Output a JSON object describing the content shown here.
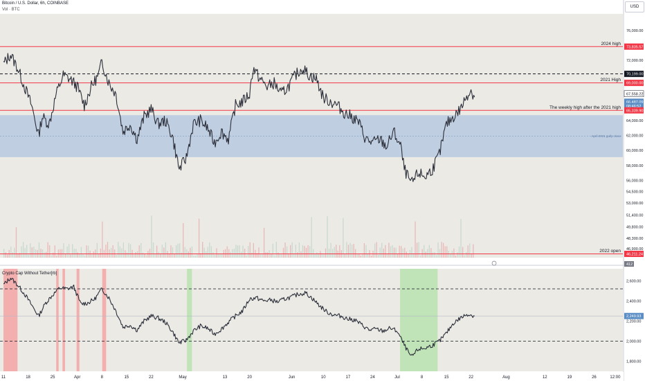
{
  "header": {
    "symbol_line": "Bitcoin / U.S. Dollar, 6h, COINBASE",
    "volume_line": "Vol · BTC",
    "currency_button": "USD"
  },
  "indicator": {
    "title": "Crypto Cap Without Tether[rb]",
    "axis_ticks": [
      {
        "label": "2,600.00",
        "value": 2600
      },
      {
        "label": "2,400.00",
        "value": 2400
      },
      {
        "label": "2,200.00",
        "value": 2200
      },
      {
        "label": "2,000.00",
        "value": 2000
      },
      {
        "label": "1,800.00",
        "value": 1800
      }
    ],
    "value_badge": {
      "label": "2,249.93",
      "value": 2249.93
    },
    "dashed_levels": [
      2520,
      2000
    ]
  },
  "volume": {
    "badge": "412"
  },
  "price_axis": {
    "ticks": [
      {
        "label": "76,000.00",
        "value": 76000
      },
      {
        "label": "72,000.00",
        "value": 72000
      },
      {
        "label": "64,000.00",
        "value": 64000
      },
      {
        "label": "62,000.00",
        "value": 62000
      },
      {
        "label": "60,000.00",
        "value": 60000
      },
      {
        "label": "58,000.00",
        "value": 58000
      },
      {
        "label": "56,000.00",
        "value": 56000
      },
      {
        "label": "54,500.00",
        "value": 54500
      },
      {
        "label": "53,000.00",
        "value": 53000
      },
      {
        "label": "51,400.00",
        "value": 51400
      },
      {
        "label": "49,800.00",
        "value": 49800
      },
      {
        "label": "48,300.00",
        "value": 48300
      },
      {
        "label": "46,900.00",
        "value": 46900
      }
    ],
    "badges": [
      {
        "label": "73,835.57",
        "value": 73835.57,
        "color": "#f23645"
      },
      {
        "label": "70,199.00",
        "value": 70199,
        "color": "#131722"
      },
      {
        "label": "69,000.00",
        "value": 69000,
        "color": "#f23645"
      },
      {
        "label": "67,558.22",
        "value": 67558.22,
        "color": "#ffffff"
      },
      {
        "label": "66,487.09",
        "value": 66487.09,
        "color": "#5b8ec4"
      },
      {
        "label": "08:46:52",
        "value": 65900,
        "color": "#5b8ec4"
      },
      {
        "label": "65,339.90",
        "value": 65339.9,
        "color": "#f23645"
      },
      {
        "label": "46,211.24",
        "value": 46211.24,
        "color": "#f23645"
      }
    ]
  },
  "levels": [
    {
      "label": "2024 high",
      "value": 73835.57,
      "color": "#f23645",
      "style": "solid"
    },
    {
      "label": "2021 High",
      "value": 69000,
      "color": "#f23645",
      "style": "solid"
    },
    {
      "label": "The weekly high after the 2021 high",
      "value": 65339.9,
      "color": "#f23645",
      "style": "solid"
    },
    {
      "label": "2022 open",
      "value": 46211.24,
      "color": "#f23645",
      "style": "solid"
    },
    {
      "label": "",
      "value": 70199,
      "color": "#131722",
      "style": "dashed"
    }
  ],
  "zone": {
    "label": "April 2021 gully close",
    "from": 59100,
    "to": 64700,
    "color": "#b8c9e0"
  },
  "time_axis": {
    "ticks": [
      {
        "label": "11",
        "day": 0
      },
      {
        "label": "18",
        "day": 7
      },
      {
        "label": "25",
        "day": 14
      },
      {
        "label": "Apr",
        "day": 21
      },
      {
        "label": "8",
        "day": 28
      },
      {
        "label": "15",
        "day": 35
      },
      {
        "label": "22",
        "day": 42
      },
      {
        "label": "May",
        "day": 51
      },
      {
        "label": "13",
        "day": 63
      },
      {
        "label": "20",
        "day": 70
      },
      {
        "label": "Jun",
        "day": 82
      },
      {
        "label": "10",
        "day": 91
      },
      {
        "label": "17",
        "day": 98
      },
      {
        "label": "24",
        "day": 105
      },
      {
        "label": "Jul",
        "day": 112
      },
      {
        "label": "8",
        "day": 119
      },
      {
        "label": "15",
        "day": 126
      },
      {
        "label": "22",
        "day": 133
      },
      {
        "label": "Aug",
        "day": 143
      },
      {
        "label": "12",
        "day": 154
      },
      {
        "label": "19",
        "day": 161
      },
      {
        "label": "26",
        "day": 168
      },
      {
        "label": "12:00",
        "day": 174
      }
    ]
  },
  "chart_data": {
    "type": "line",
    "x_unit": "days from Mar 11",
    "price_series": [
      {
        "day": 0,
        "price": 71500
      },
      {
        "day": 2,
        "price": 72800
      },
      {
        "day": 4,
        "price": 71000
      },
      {
        "day": 6,
        "price": 68500
      },
      {
        "day": 8,
        "price": 66000
      },
      {
        "day": 10,
        "price": 62000
      },
      {
        "day": 11,
        "price": 64500
      },
      {
        "day": 13,
        "price": 63500
      },
      {
        "day": 15,
        "price": 67500
      },
      {
        "day": 17,
        "price": 70000
      },
      {
        "day": 19,
        "price": 69500
      },
      {
        "day": 21,
        "price": 68500
      },
      {
        "day": 23,
        "price": 66000
      },
      {
        "day": 25,
        "price": 68500
      },
      {
        "day": 27,
        "price": 70000
      },
      {
        "day": 28,
        "price": 71800
      },
      {
        "day": 30,
        "price": 69000
      },
      {
        "day": 32,
        "price": 67500
      },
      {
        "day": 34,
        "price": 62500
      },
      {
        "day": 36,
        "price": 63500
      },
      {
        "day": 38,
        "price": 61500
      },
      {
        "day": 40,
        "price": 64500
      },
      {
        "day": 42,
        "price": 65500
      },
      {
        "day": 44,
        "price": 63500
      },
      {
        "day": 46,
        "price": 64000
      },
      {
        "day": 48,
        "price": 62000
      },
      {
        "day": 50,
        "price": 57500
      },
      {
        "day": 52,
        "price": 59000
      },
      {
        "day": 54,
        "price": 63500
      },
      {
        "day": 56,
        "price": 64000
      },
      {
        "day": 58,
        "price": 63000
      },
      {
        "day": 60,
        "price": 61000
      },
      {
        "day": 62,
        "price": 62500
      },
      {
        "day": 64,
        "price": 61500
      },
      {
        "day": 66,
        "price": 66000
      },
      {
        "day": 68,
        "price": 66500
      },
      {
        "day": 70,
        "price": 67500
      },
      {
        "day": 71,
        "price": 71000
      },
      {
        "day": 73,
        "price": 69500
      },
      {
        "day": 75,
        "price": 68500
      },
      {
        "day": 77,
        "price": 69000
      },
      {
        "day": 79,
        "price": 67500
      },
      {
        "day": 81,
        "price": 68500
      },
      {
        "day": 83,
        "price": 70000
      },
      {
        "day": 85,
        "price": 71000
      },
      {
        "day": 87,
        "price": 70000
      },
      {
        "day": 89,
        "price": 69500
      },
      {
        "day": 91,
        "price": 67000
      },
      {
        "day": 93,
        "price": 66500
      },
      {
        "day": 95,
        "price": 66000
      },
      {
        "day": 97,
        "price": 65000
      },
      {
        "day": 99,
        "price": 64500
      },
      {
        "day": 101,
        "price": 63800
      },
      {
        "day": 103,
        "price": 61500
      },
      {
        "day": 105,
        "price": 61000
      },
      {
        "day": 107,
        "price": 61500
      },
      {
        "day": 109,
        "price": 60500
      },
      {
        "day": 111,
        "price": 62500
      },
      {
        "day": 113,
        "price": 60500
      },
      {
        "day": 114,
        "price": 57500
      },
      {
        "day": 116,
        "price": 55500
      },
      {
        "day": 118,
        "price": 57000
      },
      {
        "day": 120,
        "price": 56500
      },
      {
        "day": 122,
        "price": 57500
      },
      {
        "day": 124,
        "price": 59500
      },
      {
        "day": 126,
        "price": 63500
      },
      {
        "day": 128,
        "price": 64500
      },
      {
        "day": 130,
        "price": 65500
      },
      {
        "day": 132,
        "price": 67500
      },
      {
        "day": 133,
        "price": 68000
      },
      {
        "day": 134,
        "price": 67100
      }
    ],
    "indicator_series": [
      {
        "day": 0,
        "value": 2560
      },
      {
        "day": 2,
        "value": 2630
      },
      {
        "day": 4,
        "value": 2560
      },
      {
        "day": 6,
        "value": 2470
      },
      {
        "day": 8,
        "value": 2360
      },
      {
        "day": 10,
        "value": 2250
      },
      {
        "day": 12,
        "value": 2380
      },
      {
        "day": 14,
        "value": 2460
      },
      {
        "day": 16,
        "value": 2530
      },
      {
        "day": 18,
        "value": 2520
      },
      {
        "day": 20,
        "value": 2540
      },
      {
        "day": 22,
        "value": 2370
      },
      {
        "day": 24,
        "value": 2380
      },
      {
        "day": 26,
        "value": 2420
      },
      {
        "day": 28,
        "value": 2520
      },
      {
        "day": 30,
        "value": 2430
      },
      {
        "day": 32,
        "value": 2300
      },
      {
        "day": 34,
        "value": 2140
      },
      {
        "day": 36,
        "value": 2160
      },
      {
        "day": 38,
        "value": 2110
      },
      {
        "day": 40,
        "value": 2200
      },
      {
        "day": 42,
        "value": 2250
      },
      {
        "day": 44,
        "value": 2230
      },
      {
        "day": 46,
        "value": 2190
      },
      {
        "day": 48,
        "value": 2100
      },
      {
        "day": 50,
        "value": 1980
      },
      {
        "day": 52,
        "value": 2010
      },
      {
        "day": 54,
        "value": 2100
      },
      {
        "day": 56,
        "value": 2150
      },
      {
        "day": 58,
        "value": 2130
      },
      {
        "day": 60,
        "value": 2070
      },
      {
        "day": 62,
        "value": 2120
      },
      {
        "day": 64,
        "value": 2190
      },
      {
        "day": 66,
        "value": 2250
      },
      {
        "day": 68,
        "value": 2300
      },
      {
        "day": 70,
        "value": 2420
      },
      {
        "day": 72,
        "value": 2430
      },
      {
        "day": 74,
        "value": 2400
      },
      {
        "day": 76,
        "value": 2410
      },
      {
        "day": 78,
        "value": 2390
      },
      {
        "day": 80,
        "value": 2420
      },
      {
        "day": 82,
        "value": 2440
      },
      {
        "day": 84,
        "value": 2470
      },
      {
        "day": 86,
        "value": 2480
      },
      {
        "day": 88,
        "value": 2420
      },
      {
        "day": 90,
        "value": 2350
      },
      {
        "day": 92,
        "value": 2290
      },
      {
        "day": 94,
        "value": 2260
      },
      {
        "day": 96,
        "value": 2250
      },
      {
        "day": 98,
        "value": 2220
      },
      {
        "day": 100,
        "value": 2210
      },
      {
        "day": 102,
        "value": 2160
      },
      {
        "day": 104,
        "value": 2110
      },
      {
        "day": 106,
        "value": 2120
      },
      {
        "day": 108,
        "value": 2100
      },
      {
        "day": 110,
        "value": 2130
      },
      {
        "day": 112,
        "value": 2100
      },
      {
        "day": 114,
        "value": 1960
      },
      {
        "day": 116,
        "value": 1840
      },
      {
        "day": 118,
        "value": 1920
      },
      {
        "day": 120,
        "value": 1930
      },
      {
        "day": 122,
        "value": 1960
      },
      {
        "day": 124,
        "value": 2000
      },
      {
        "day": 126,
        "value": 2080
      },
      {
        "day": 128,
        "value": 2180
      },
      {
        "day": 130,
        "value": 2230
      },
      {
        "day": 132,
        "value": 2270
      },
      {
        "day": 134,
        "value": 2250
      }
    ],
    "highlight_bands": [
      {
        "from_day": 0,
        "to_day": 4,
        "color": "#f4a5a5"
      },
      {
        "from_day": 15,
        "to_day": 15.7,
        "color": "#f4a5a5"
      },
      {
        "from_day": 16.8,
        "to_day": 17.5,
        "color": "#f4a5a5"
      },
      {
        "from_day": 20.8,
        "to_day": 21.6,
        "color": "#f4a5a5"
      },
      {
        "from_day": 28.1,
        "to_day": 29.2,
        "color": "#f4a5a5"
      },
      {
        "from_day": 52.2,
        "to_day": 53.6,
        "color": "#b9e3b0"
      },
      {
        "from_day": 112.8,
        "to_day": 123.5,
        "color": "#b9e3b0"
      }
    ],
    "price_range": [
      45700,
      78200
    ],
    "indicator_range": [
      1700,
      2720
    ]
  }
}
